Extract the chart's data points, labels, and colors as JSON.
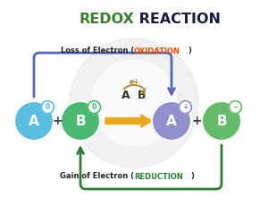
{
  "title_redox": "REDOX",
  "title_reaction": " REACTION",
  "title_redox_color": "#3a7d2c",
  "title_reaction_color": "#1a1a3e",
  "title_fontsize": 11.5,
  "bg_color": "#ffffff",
  "circle_A_left_color": "#5bbde0",
  "circle_B_left_color": "#4ab870",
  "circle_A_right_color": "#9090cc",
  "circle_B_right_color": "#66bb6a",
  "superscript_0": "0",
  "superscript_plus": "+",
  "superscript_minus": "−",
  "oxidation_text": "Loss of Electron (OXIDATION)",
  "oxidation_normal": "Loss of Electron (",
  "oxidation_colored": "OXIDATION",
  "oxidation_end": ")",
  "oxidation_color": "#e65100",
  "reduction_normal": "Gain of Electron (",
  "reduction_colored": "REDUCTION",
  "reduction_end": ")",
  "reduction_color": "#2e7d32",
  "arrow_oxidation_color": "#5566bb",
  "arrow_reduction_color": "#2e7d32",
  "reaction_arrow_color": "#e8a820",
  "electron_label": "e+",
  "electron_arc_color": "#aa8833",
  "mid_AB_color": "#333333",
  "watermark_color": "#e0e0e0",
  "plus_color": "#444444",
  "label_fontsize": 6.0,
  "label_normal_color": "#222222"
}
